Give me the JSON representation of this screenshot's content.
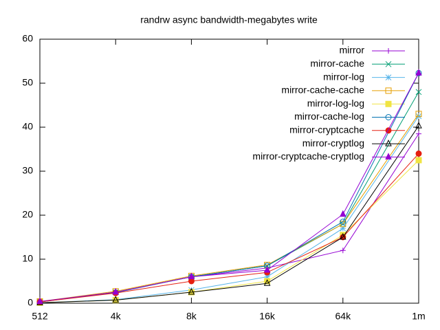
{
  "chart_data": {
    "type": "line",
    "title": "randrw async bandwidth-megabytes write",
    "categories": [
      "512",
      "4k",
      "8k",
      "16k",
      "64k",
      "1m"
    ],
    "ylim": [
      0,
      60
    ],
    "yticks": [
      0,
      10,
      20,
      30,
      40,
      50,
      60
    ],
    "grid": false,
    "legend": "top-right",
    "series": [
      {
        "name": "mirror",
        "color": "#9400d3",
        "marker": "plus",
        "values": [
          0.3,
          2.5,
          6.0,
          8.0,
          12.0,
          38.5
        ]
      },
      {
        "name": "mirror-cache",
        "color": "#009e73",
        "marker": "x",
        "values": [
          0.3,
          2.5,
          6.0,
          8.5,
          18.0,
          48.0
        ]
      },
      {
        "name": "mirror-log",
        "color": "#56b4e9",
        "marker": "star",
        "values": [
          0.1,
          0.8,
          3.0,
          6.0,
          17.0,
          42.5
        ]
      },
      {
        "name": "mirror-cache-cache",
        "color": "#e69f00",
        "marker": "square",
        "values": [
          0.4,
          2.7,
          6.2,
          8.7,
          18.0,
          43.0
        ]
      },
      {
        "name": "mirror-log-log",
        "color": "#f0e442",
        "marker": "filled-square",
        "values": [
          0.1,
          0.7,
          2.5,
          5.0,
          15.5,
          32.5
        ]
      },
      {
        "name": "mirror-cache-log",
        "color": "#0072b2",
        "marker": "circle",
        "values": [
          0.3,
          2.4,
          6.0,
          8.5,
          18.5,
          52.3
        ]
      },
      {
        "name": "mirror-cryptcache",
        "color": "#e51e10",
        "marker": "filled-circle",
        "values": [
          0.3,
          2.3,
          5.0,
          7.0,
          15.0,
          34.0
        ]
      },
      {
        "name": "mirror-cryptlog",
        "color": "#000000",
        "marker": "triangle",
        "values": [
          0.1,
          0.7,
          2.5,
          4.5,
          15.0,
          40.3
        ]
      },
      {
        "name": "mirror-cryptcache-cryptlog",
        "color": "#9400d3",
        "marker": "filled-triangle",
        "values": [
          0.4,
          2.5,
          6.0,
          7.5,
          20.2,
          52.3
        ]
      }
    ]
  }
}
